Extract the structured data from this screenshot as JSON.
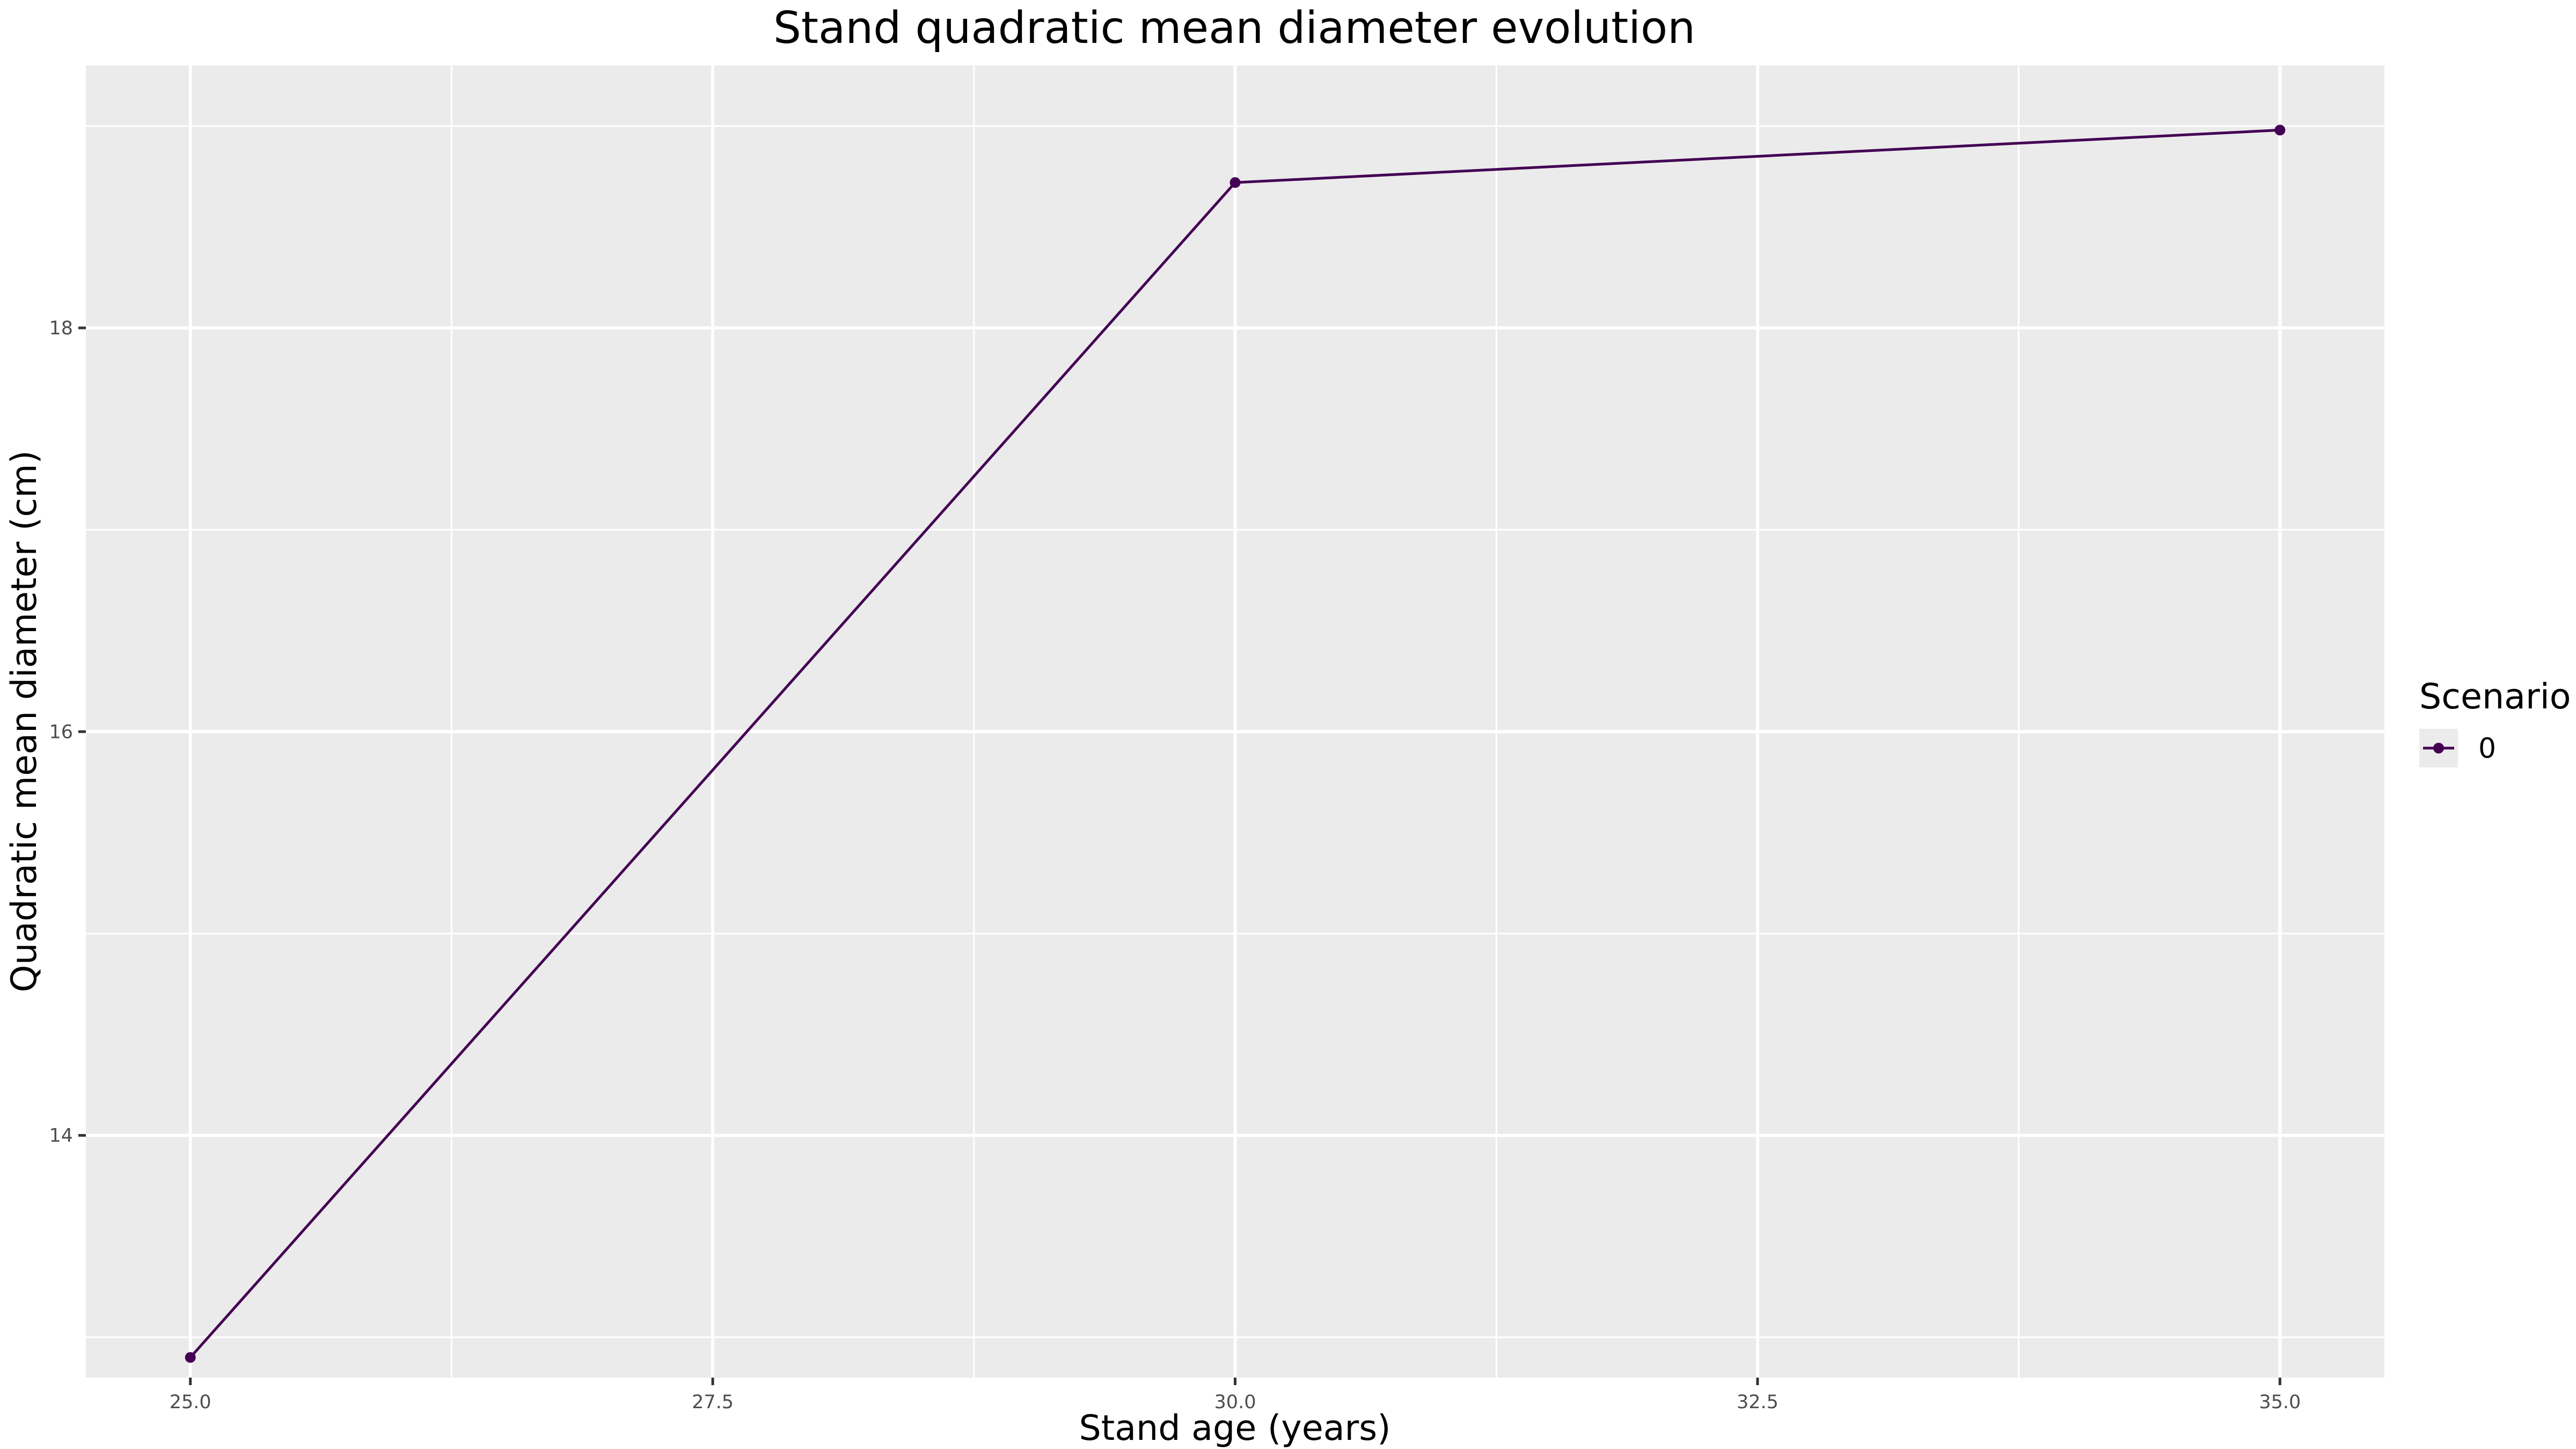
{
  "chart_data": {
    "type": "line",
    "title": "Stand quadratic mean diameter evolution",
    "xlabel": "Stand age (years)",
    "ylabel": "Quadratic mean diameter (cm)",
    "xlim": [
      24.5,
      35.5
    ],
    "ylim": [
      12.8,
      19.3
    ],
    "x_ticks": [
      25.0,
      27.5,
      30.0,
      32.5,
      35.0
    ],
    "x_tick_labels": [
      "25.0",
      "27.5",
      "30.0",
      "32.5",
      "35.0"
    ],
    "y_ticks": [
      14,
      16,
      18
    ],
    "y_tick_labels": [
      "14",
      "16",
      "18"
    ],
    "grid": true,
    "legend": {
      "title": "Scenario",
      "placement": "right",
      "entries": [
        "0"
      ]
    },
    "series": [
      {
        "name": "0",
        "color": "#440154",
        "x": [
          25,
          30,
          35
        ],
        "y": [
          12.9,
          18.72,
          18.98
        ]
      }
    ],
    "panel_background": "#ebebeb",
    "grid_color": "#ffffff"
  }
}
